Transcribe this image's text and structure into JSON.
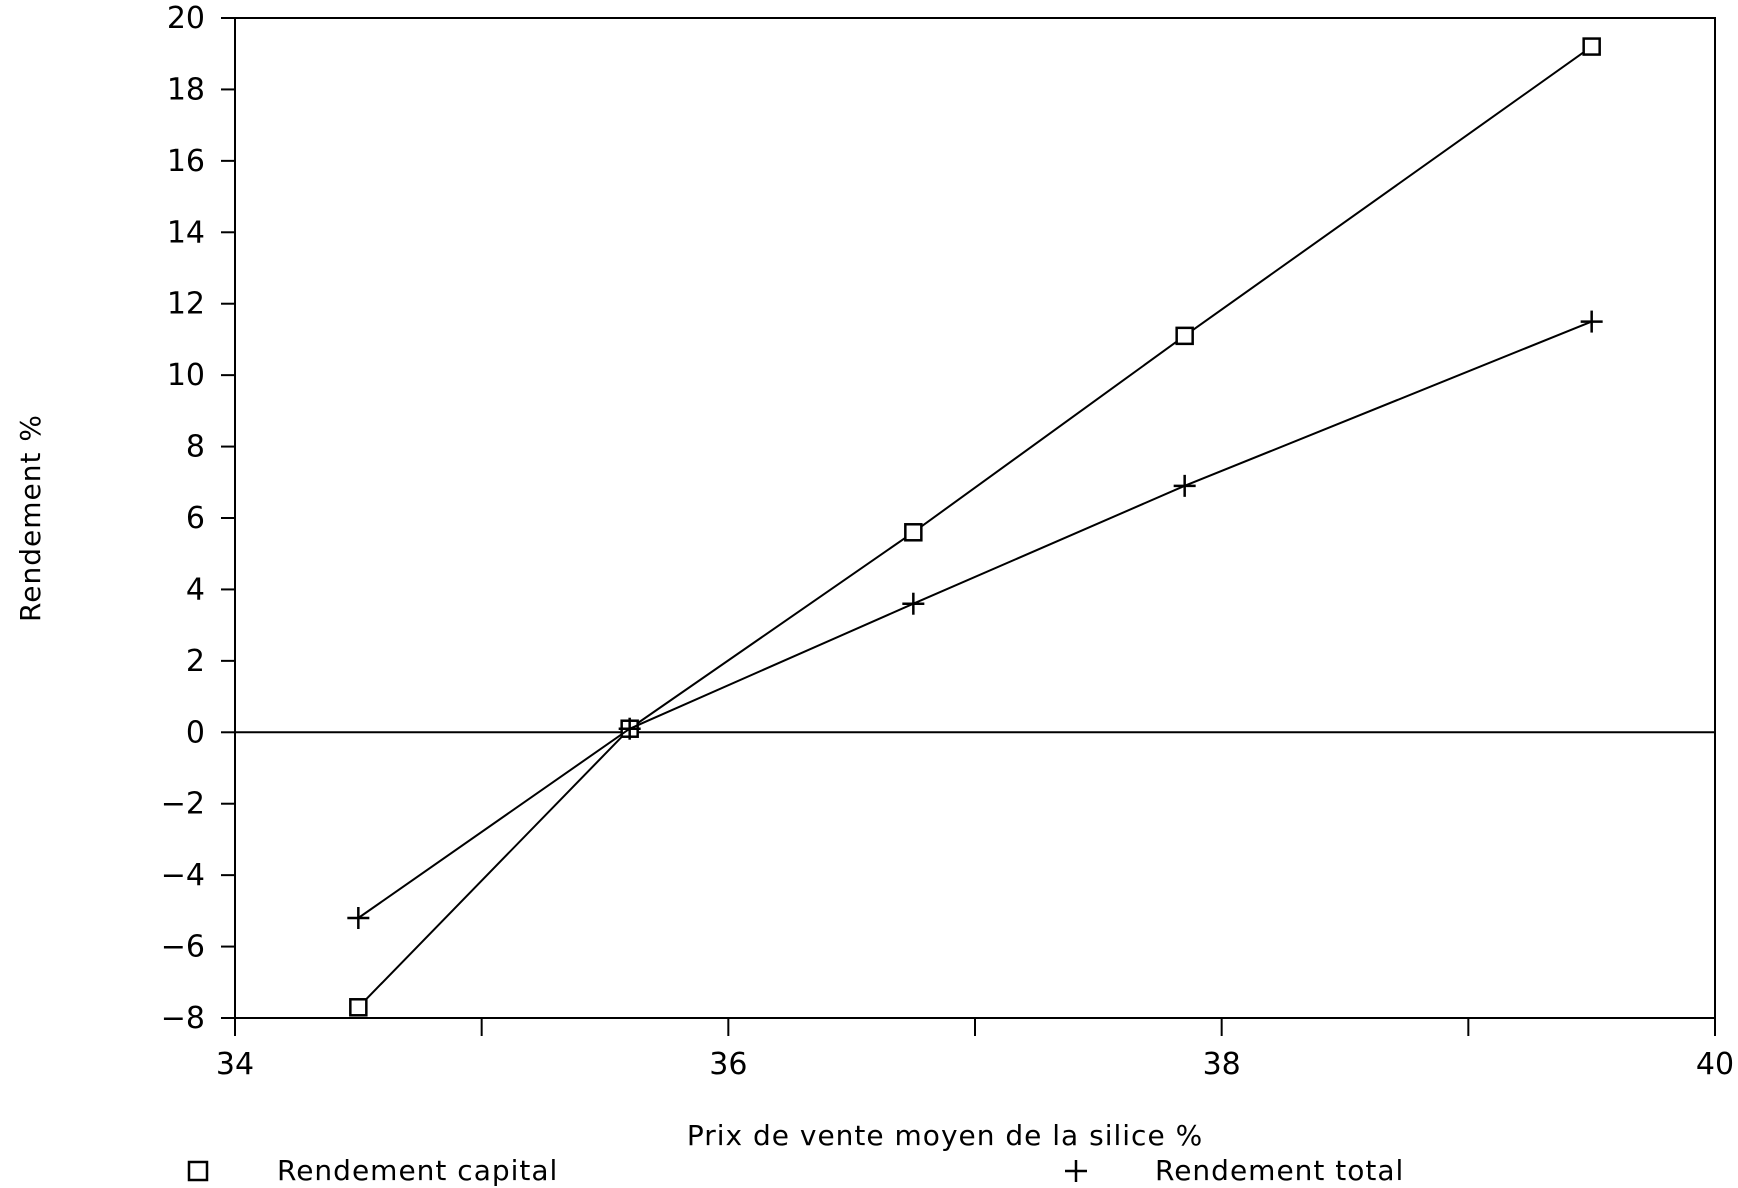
{
  "chart_data": {
    "type": "line",
    "title": "",
    "xlabel": "Prix de vente moyen de la silice %",
    "ylabel": "Rendement %",
    "xlim": [
      34,
      40
    ],
    "ylim": [
      -8,
      20
    ],
    "x_ticks": [
      34,
      36,
      38,
      40
    ],
    "x_tick_labels": [
      "34",
      "36",
      "38",
      "40"
    ],
    "x_minor_ticks": [
      35,
      37,
      39
    ],
    "y_ticks": [
      -8,
      -6,
      -4,
      -2,
      0,
      2,
      4,
      6,
      8,
      10,
      12,
      14,
      16,
      18,
      20
    ],
    "y_tick_labels": [
      "−8",
      "−6",
      "−4",
      "−2",
      "0",
      "2",
      "4",
      "6",
      "8",
      "10",
      "12",
      "14",
      "16",
      "18",
      "20"
    ],
    "grid": false,
    "zero_line": true,
    "legend_position": "bottom",
    "series": [
      {
        "name": "Rendement capital",
        "marker": "square",
        "color": "#000000",
        "x": [
          34.5,
          35.6,
          36.75,
          37.85,
          39.5
        ],
        "y": [
          -7.7,
          0.1,
          5.6,
          11.1,
          19.2
        ]
      },
      {
        "name": "Rendement total",
        "marker": "plus",
        "color": "#000000",
        "x": [
          34.5,
          35.6,
          36.75,
          37.85,
          39.5
        ],
        "y": [
          -5.2,
          0.1,
          3.6,
          6.9,
          11.5
        ]
      }
    ]
  },
  "legend": {
    "items": [
      {
        "symbol": "□",
        "label": "Rendement capital"
      },
      {
        "symbol": "+",
        "label": "Rendement total"
      }
    ]
  }
}
